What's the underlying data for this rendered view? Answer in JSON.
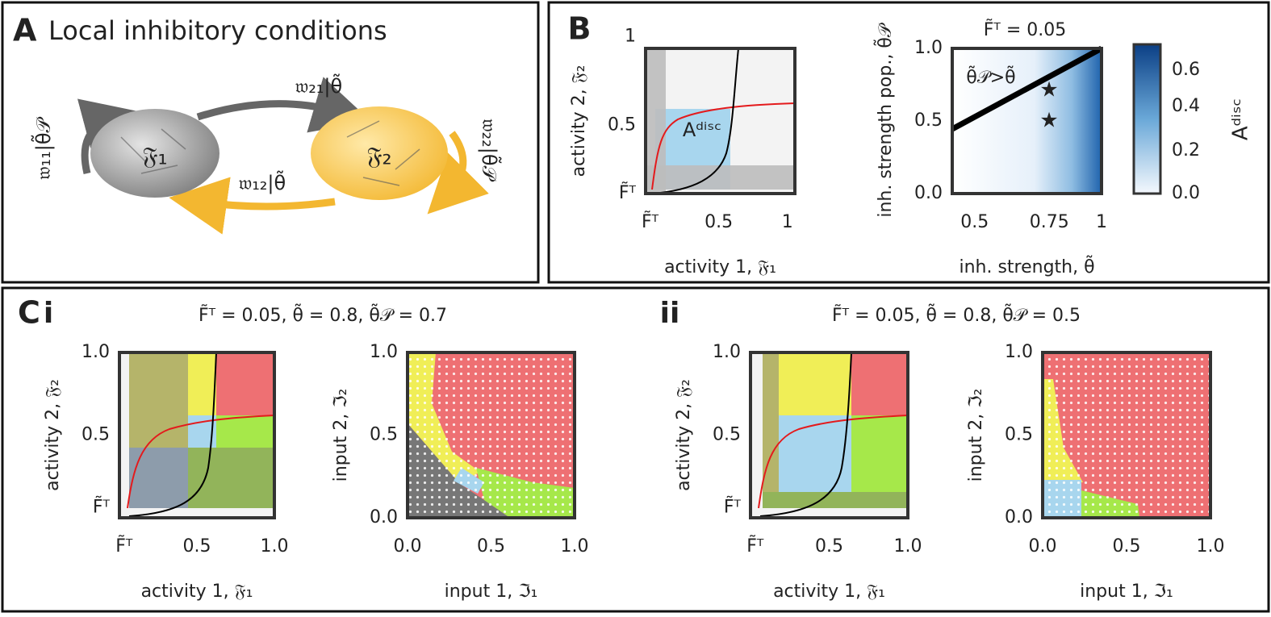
{
  "panel_a": {
    "letter": "A",
    "title": "Local inhibitory conditions",
    "population_1": "𝔉₁",
    "population_2": "𝔉₂",
    "weight_11": "𝔴₁₁|θ̃𝒫",
    "weight_21": "𝔴₂₁|θ̃",
    "weight_12": "𝔴₁₂|θ̃",
    "weight_22": "𝔴₂₂|θ̃𝒫"
  },
  "panel_b": {
    "letter": "B",
    "phase_plot": {
      "xlabel": "activity 1, 𝔉₁",
      "ylabel": "activity 2, 𝔉₂",
      "xticks": [
        "F̃ᵀ",
        "0.5",
        "1"
      ],
      "yticks": [
        "F̃ᵀ",
        "0.5",
        "1"
      ],
      "region_label": "Aᵈⁱˢᶜ"
    },
    "heatmap": {
      "title": "F̃ᵀ = 0.05",
      "xlabel": "inh. strength, θ̃",
      "ylabel": "inh. strength pop., θ̃𝒫",
      "xticks": [
        "0.5",
        "0.75",
        "1"
      ],
      "yticks": [
        "0.0",
        "0.5",
        "1.0"
      ],
      "annotation": "θ̃𝒫>θ̃",
      "colorbar_label": "Aᵈⁱˢᶜ",
      "colorbar_ticks": [
        "0.0",
        "0.2",
        "0.4",
        "0.6"
      ]
    }
  },
  "panel_c": {
    "letter": "C",
    "subpanels": [
      {
        "numeral": "i",
        "title": "F̃ᵀ = 0.05, θ̃ = 0.8, θ̃𝒫 = 0.7",
        "phase_plot": {
          "xlabel": "activity 1, 𝔉₁",
          "ylabel": "activity 2, 𝔉₂",
          "xticks": [
            "F̃ᵀ",
            "0.5",
            "1.0"
          ],
          "yticks": [
            "F̃ᵀ",
            "0.5",
            "1.0"
          ]
        },
        "input_plot": {
          "xlabel": "input 1, ℑ₁",
          "ylabel": "input 2, ℑ₂",
          "xticks": [
            "0.0",
            "0.5",
            "1.0"
          ],
          "yticks": [
            "0.0",
            "0.5",
            "1.0"
          ]
        }
      },
      {
        "numeral": "ii",
        "title": "F̃ᵀ = 0.05, θ̃ = 0.8, θ̃𝒫 = 0.5",
        "phase_plot": {
          "xlabel": "activity 1, 𝔉₁",
          "ylabel": "activity 2, 𝔉₂",
          "xticks": [
            "F̃ᵀ",
            "0.5",
            "1.0"
          ],
          "yticks": [
            "F̃ᵀ",
            "0.5",
            "1.0"
          ]
        },
        "input_plot": {
          "xlabel": "input 1, ℑ₁",
          "ylabel": "input 2, ℑ₂",
          "xticks": [
            "0.0",
            "0.5",
            "1.0"
          ],
          "yticks": [
            "0.0",
            "0.5",
            "1.0"
          ]
        }
      }
    ]
  }
}
